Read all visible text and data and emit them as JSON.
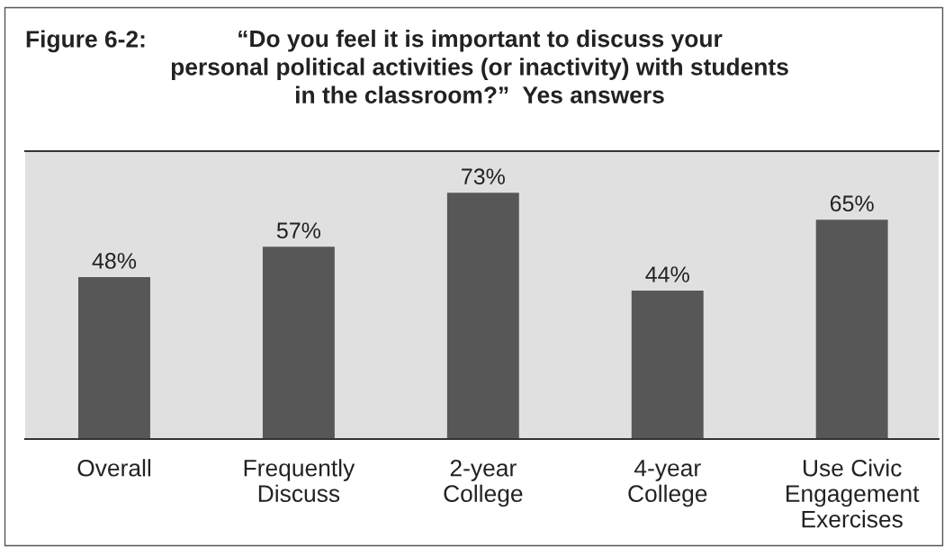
{
  "chart_data": {
    "type": "bar",
    "title": "Figure 6-2:",
    "subtitle": "“Do you feel it is important to discuss your\npersonal political activities (or inactivity) with students\nin the classroom?”  Yes answers",
    "categories": [
      "Overall",
      "Frequently\nDiscuss",
      "2-year\nCollege",
      "4-year\nCollege",
      "Use Civic\nEngagement\nExercises"
    ],
    "values": [
      48,
      57,
      73,
      44,
      65
    ],
    "value_labels": [
      "48%",
      "57%",
      "73%",
      "44%",
      "65%"
    ],
    "color": "#575757",
    "ylim": [
      0,
      85.3
    ],
    "tick_labels": "x",
    "grid": false,
    "legend": false
  }
}
